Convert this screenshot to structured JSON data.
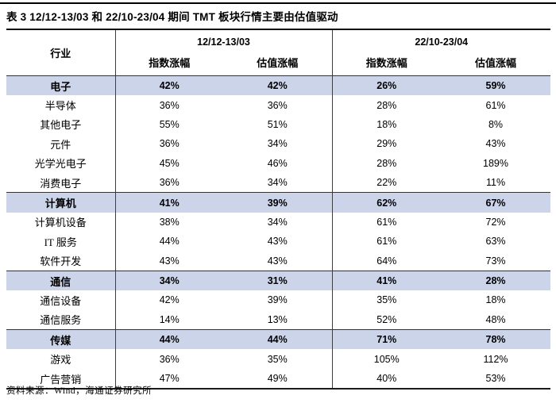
{
  "title": "表 3  12/12-13/03 和 22/10-23/04 期间 TMT 板块行情主要由估值驱动",
  "table": {
    "industry_header": "行业",
    "groups": [
      {
        "label": "12/12-13/03",
        "sub": [
          "指数涨幅",
          "估值涨幅"
        ]
      },
      {
        "label": "22/10-23/04",
        "sub": [
          "指数涨幅",
          "估值涨幅"
        ]
      }
    ],
    "rows": [
      {
        "industry": "电子",
        "values": [
          "42%",
          "42%",
          "26%",
          "59%"
        ],
        "highlight": true
      },
      {
        "industry": "半导体",
        "values": [
          "36%",
          "36%",
          "28%",
          "61%"
        ],
        "highlight": false
      },
      {
        "industry": "其他电子",
        "values": [
          "55%",
          "51%",
          "18%",
          "8%"
        ],
        "highlight": false
      },
      {
        "industry": "元件",
        "values": [
          "36%",
          "34%",
          "29%",
          "43%"
        ],
        "highlight": false
      },
      {
        "industry": "光学光电子",
        "values": [
          "45%",
          "46%",
          "28%",
          "189%"
        ],
        "highlight": false
      },
      {
        "industry": "消费电子",
        "values": [
          "36%",
          "34%",
          "22%",
          "11%"
        ],
        "highlight": false
      },
      {
        "industry": "计算机",
        "values": [
          "41%",
          "39%",
          "62%",
          "67%"
        ],
        "highlight": true
      },
      {
        "industry": "计算机设备",
        "values": [
          "38%",
          "34%",
          "61%",
          "72%"
        ],
        "highlight": false
      },
      {
        "industry": "IT 服务",
        "values": [
          "44%",
          "43%",
          "61%",
          "63%"
        ],
        "highlight": false
      },
      {
        "industry": "软件开发",
        "values": [
          "43%",
          "43%",
          "64%",
          "73%"
        ],
        "highlight": false
      },
      {
        "industry": "通信",
        "values": [
          "34%",
          "31%",
          "41%",
          "28%"
        ],
        "highlight": true
      },
      {
        "industry": "通信设备",
        "values": [
          "42%",
          "39%",
          "35%",
          "18%"
        ],
        "highlight": false
      },
      {
        "industry": "通信服务",
        "values": [
          "14%",
          "13%",
          "52%",
          "48%"
        ],
        "highlight": false
      },
      {
        "industry": "传媒",
        "values": [
          "44%",
          "44%",
          "71%",
          "78%"
        ],
        "highlight": true
      },
      {
        "industry": "游戏",
        "values": [
          "36%",
          "35%",
          "105%",
          "112%"
        ],
        "highlight": false
      },
      {
        "industry": "广告营销",
        "values": [
          "47%",
          "49%",
          "40%",
          "53%"
        ],
        "highlight": false
      }
    ]
  },
  "footer": "资料来源：Wind，海通证券研究所",
  "colors": {
    "highlight_row": "#ccd4ea",
    "rule": "#000000"
  }
}
